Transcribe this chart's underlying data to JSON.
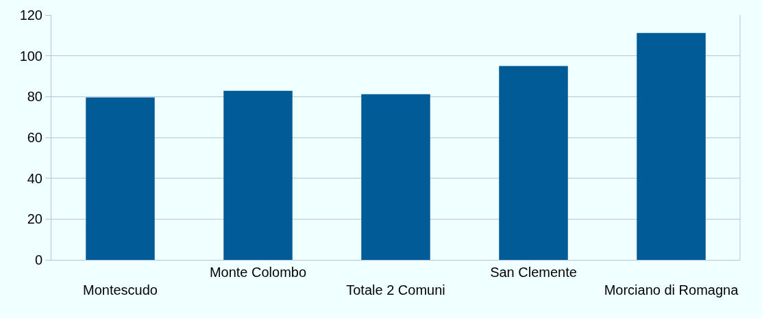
{
  "chart_data": {
    "type": "bar",
    "categories": [
      "Montescudo",
      "Monte Colombo",
      "Totale 2 Comuni",
      "San Clemente",
      "Morciano di Romagna"
    ],
    "values": [
      79.6,
      82.9,
      81.2,
      95.0,
      111.2
    ],
    "color": "#005b96",
    "ylim": [
      0,
      120
    ],
    "yticks": [
      0,
      20,
      40,
      60,
      80,
      100,
      120
    ],
    "grid": "y",
    "legend": false
  }
}
